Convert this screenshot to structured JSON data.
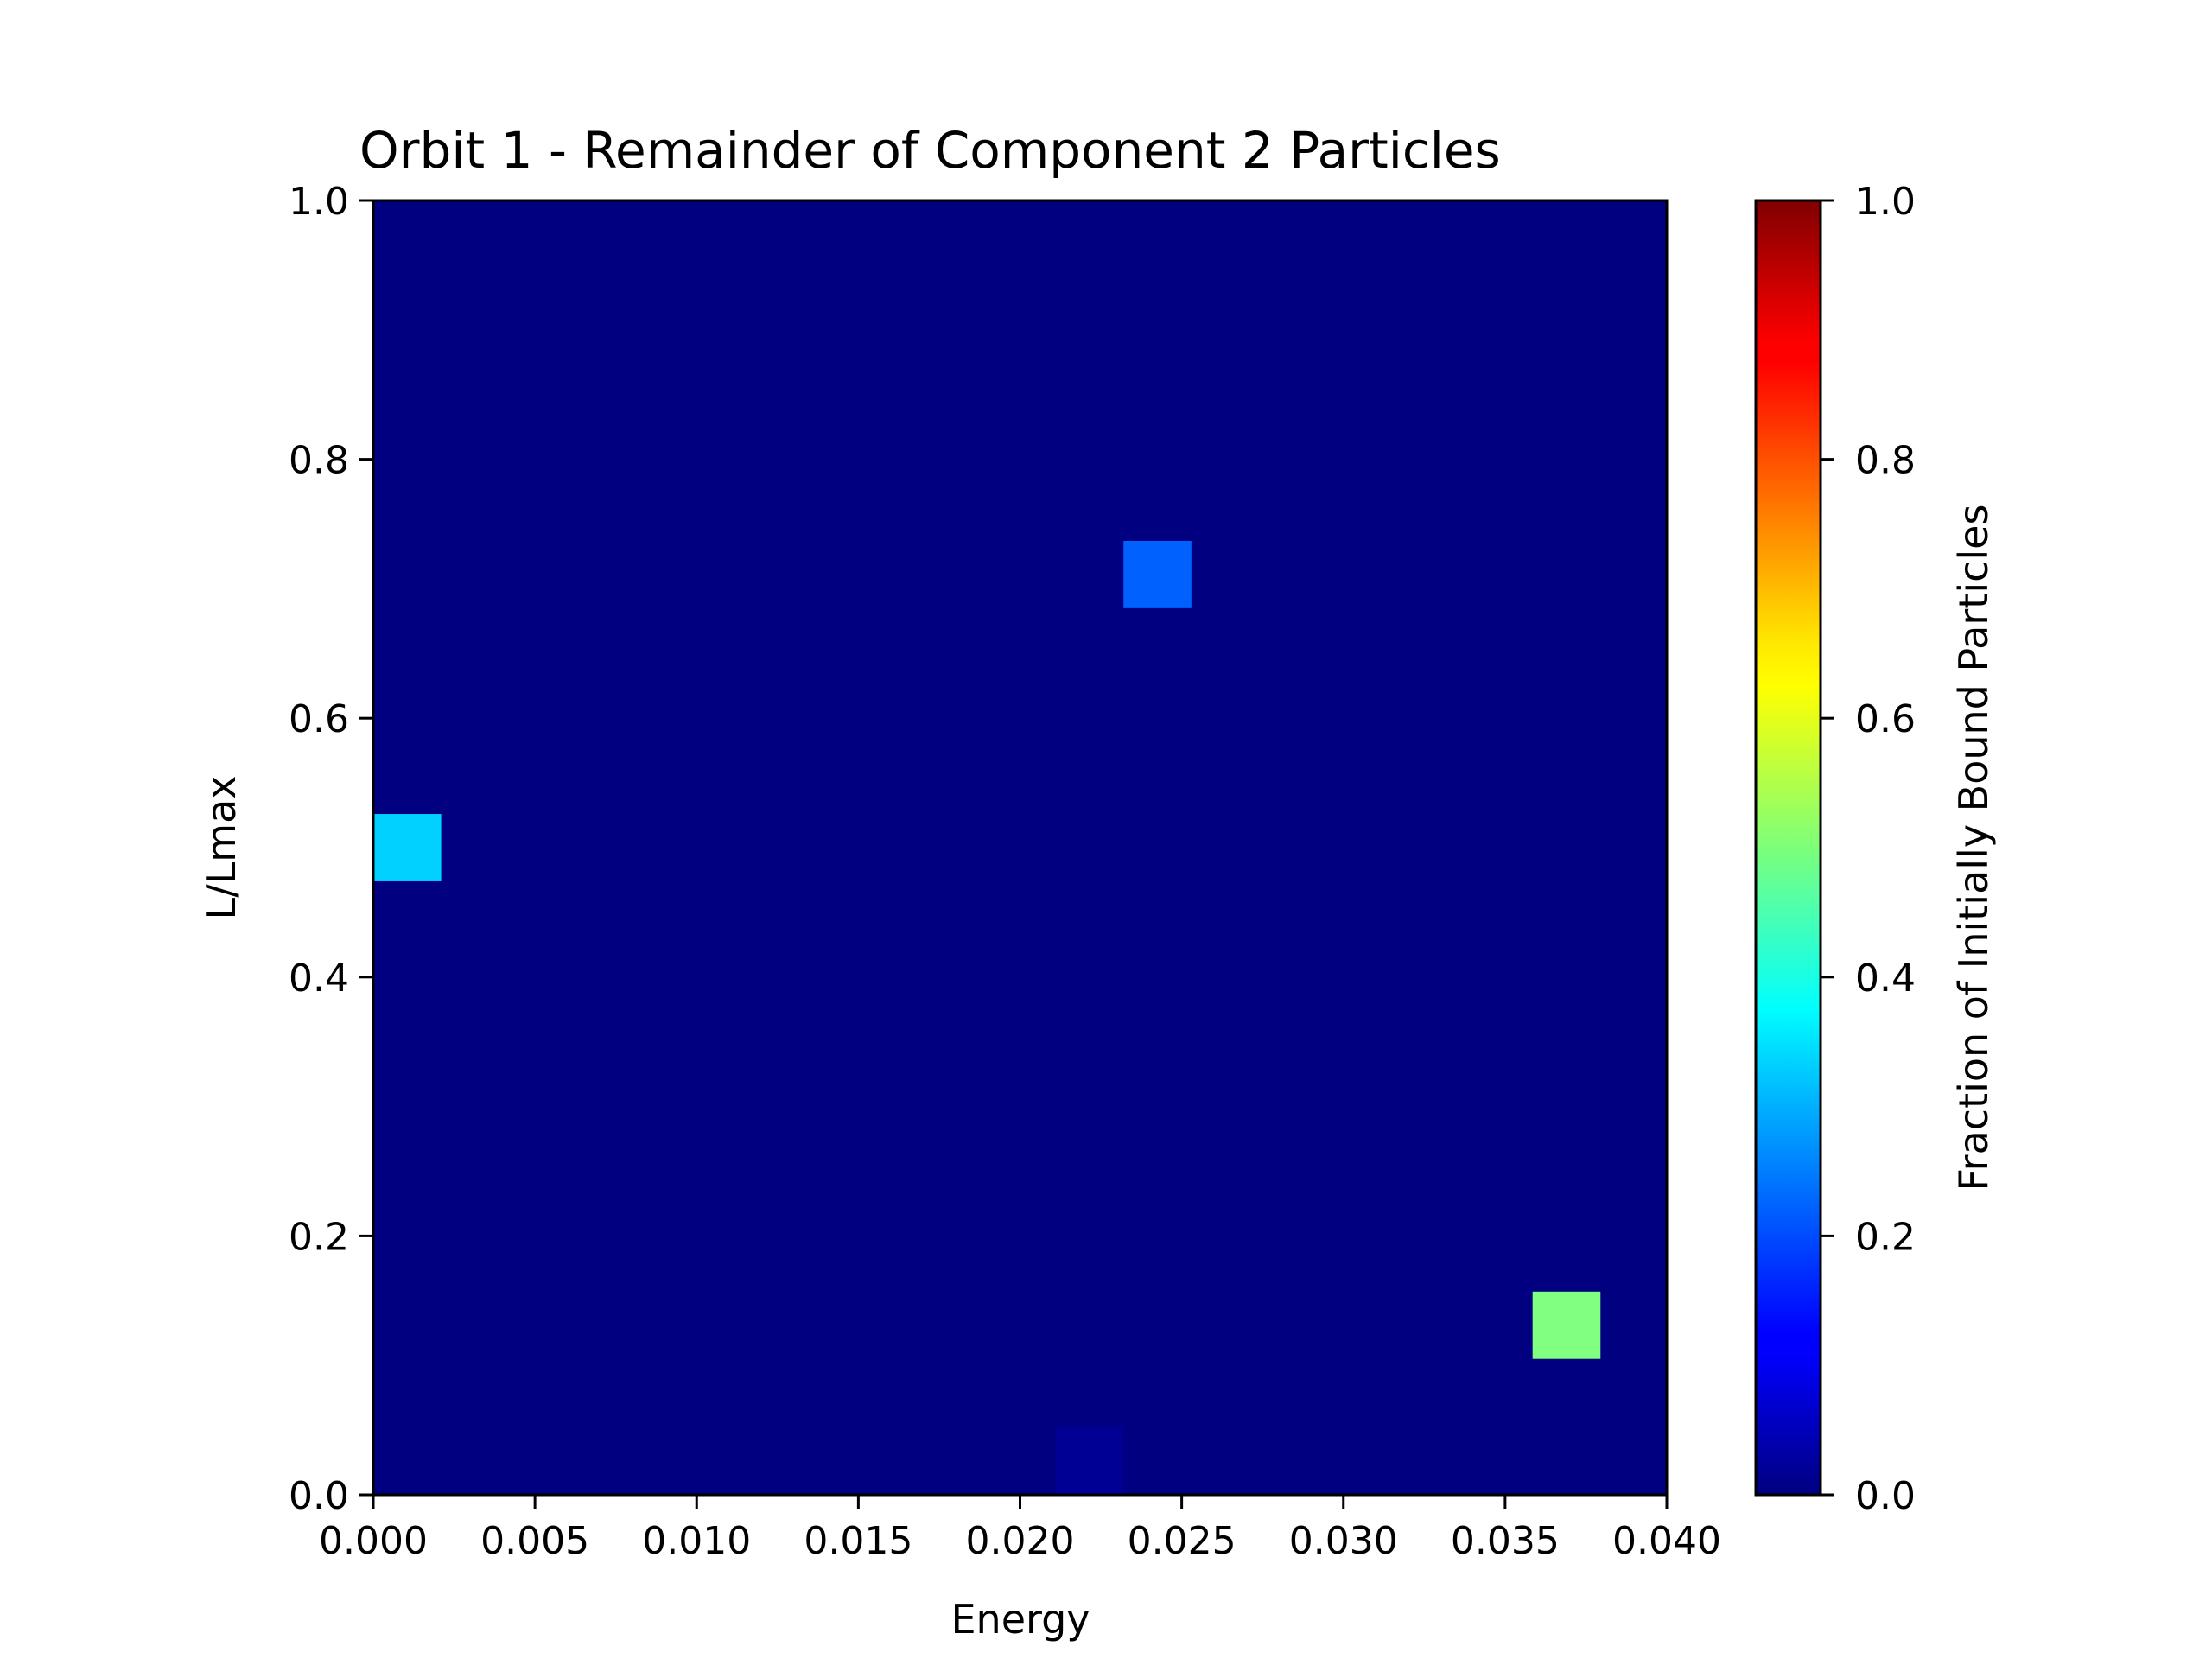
{
  "chart_data": {
    "type": "heatmap",
    "title": "Orbit 1 - Remainder of Component 2 Particles",
    "xlabel": "Energy",
    "ylabel": "L/Lmax",
    "xlim": [
      0.0,
      0.04
    ],
    "ylim": [
      0.0,
      1.0
    ],
    "x_ticks": [
      "0.000",
      "0.005",
      "0.010",
      "0.015",
      "0.020",
      "0.025",
      "0.030",
      "0.035",
      "0.040"
    ],
    "y_ticks": [
      "0.0",
      "0.2",
      "0.4",
      "0.6",
      "0.8",
      "1.0"
    ],
    "grid": false,
    "colormap": "jet",
    "background_value": 0.0,
    "bin_width": {
      "energy": 0.0021,
      "l_over_lmax": 0.052
    },
    "cells": [
      {
        "energy": 0.00105,
        "l_over_lmax": 0.5,
        "value": 0.33
      },
      {
        "energy": 0.02425,
        "l_over_lmax": 0.711,
        "value": 0.22
      },
      {
        "energy": 0.02215,
        "l_over_lmax": 0.026,
        "value": 0.02
      },
      {
        "energy": 0.0369,
        "l_over_lmax": 0.131,
        "value": 0.5
      }
    ],
    "colorbar": {
      "label": "Fraction of Initially Bound Particles",
      "range": [
        0.0,
        1.0
      ],
      "ticks": [
        "0.0",
        "0.2",
        "0.4",
        "0.6",
        "0.8",
        "1.0"
      ]
    }
  }
}
